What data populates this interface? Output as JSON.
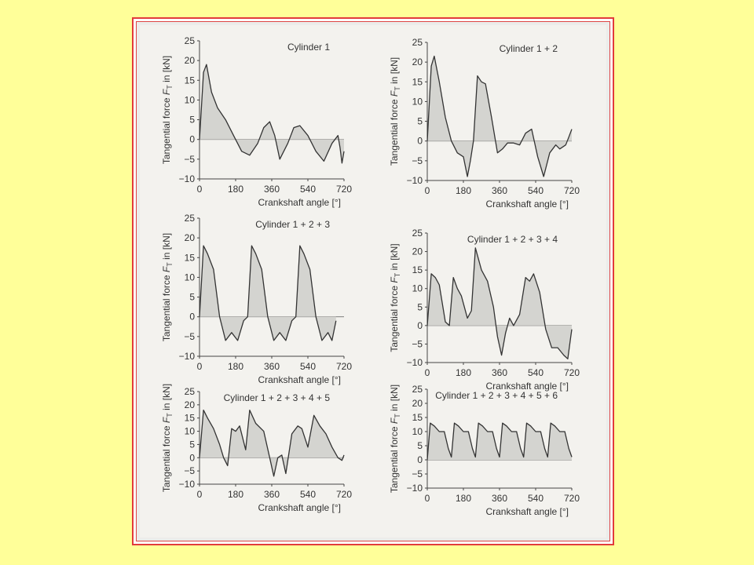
{
  "colors": {
    "background": "#ffff99",
    "frame": "#e23b3b",
    "curve": "#333333",
    "fill": "#d4d4d0"
  },
  "chart_data": [
    {
      "type": "area",
      "title": "Cylinder 1",
      "xlabel": "Crankshaft angle [°]",
      "ylabel": "Tangential force F_T in [kN]",
      "xticks": [
        "0",
        "180",
        "360",
        "540",
        "720"
      ],
      "yticks": [
        "25",
        "20",
        "15",
        "10",
        "5",
        "0",
        "−5",
        "−10"
      ],
      "xlim": [
        0,
        720
      ],
      "ylim": [
        -10,
        25
      ],
      "x": [
        0,
        20,
        35,
        60,
        90,
        130,
        170,
        210,
        250,
        290,
        320,
        350,
        375,
        400,
        440,
        470,
        500,
        540,
        580,
        620,
        660,
        690,
        700,
        710,
        720
      ],
      "y": [
        0,
        17,
        19,
        12,
        8,
        5,
        1,
        -3,
        -4,
        -1,
        3,
        4.5,
        1,
        -5,
        -1,
        3,
        3.5,
        1,
        -3,
        -5.5,
        -1,
        1,
        -2,
        -6,
        -3
      ]
    },
    {
      "type": "area",
      "title": "Cylinder 1 + 2",
      "xlabel": "Crankshaft angle [°]",
      "ylabel": "Tangential force F_T in [kN]",
      "xticks": [
        "0",
        "180",
        "360",
        "540",
        "720"
      ],
      "yticks": [
        "25",
        "20",
        "15",
        "10",
        "5",
        "0",
        "−5",
        "−10"
      ],
      "xlim": [
        0,
        720
      ],
      "ylim": [
        -10,
        25
      ],
      "x": [
        0,
        20,
        35,
        60,
        90,
        120,
        150,
        180,
        200,
        215,
        230,
        250,
        270,
        290,
        320,
        350,
        375,
        400,
        430,
        460,
        490,
        520,
        550,
        580,
        610,
        640,
        660,
        690,
        705,
        720
      ],
      "y": [
        0,
        19,
        21.5,
        15,
        6,
        0,
        -3,
        -4,
        -9,
        -5,
        0,
        16.5,
        15,
        14.5,
        6,
        -3,
        -2,
        -0.5,
        -0.5,
        -1,
        2,
        3,
        -4,
        -9,
        -3,
        -1,
        -2,
        -1,
        1,
        3
      ]
    },
    {
      "type": "area",
      "title": "Cylinder 1 + 2 + 3",
      "xlabel": "Crankshaft angle [°]",
      "ylabel": "Tangential force F_T in [kN]",
      "xticks": [
        "0",
        "180",
        "360",
        "540",
        "720"
      ],
      "yticks": [
        "25",
        "20",
        "15",
        "10",
        "5",
        "0",
        "−5",
        "−10"
      ],
      "xlim": [
        0,
        720
      ],
      "ylim": [
        -10,
        25
      ],
      "x": [
        0,
        20,
        40,
        70,
        100,
        130,
        160,
        190,
        220,
        240,
        260,
        280,
        310,
        340,
        370,
        400,
        430,
        460,
        480,
        500,
        520,
        550,
        580,
        610,
        640,
        660,
        680
      ],
      "y": [
        0,
        18,
        16,
        12,
        0,
        -6,
        -4,
        -6,
        -1,
        0,
        18,
        16,
        12,
        0,
        -6,
        -4,
        -6,
        -1,
        0,
        18,
        16,
        12,
        0,
        -6,
        -4,
        -6,
        -1
      ]
    },
    {
      "type": "area",
      "title": "Cylinder 1 + 2 + 3 + 4",
      "xlabel": "Crankshaft angle [°]",
      "ylabel": "Tangential force F_T in [kN]",
      "xticks": [
        "0",
        "180",
        "360",
        "540",
        "720"
      ],
      "yticks": [
        "25",
        "20",
        "15",
        "10",
        "5",
        "0",
        "−5",
        "−10"
      ],
      "xlim": [
        0,
        720
      ],
      "ylim": [
        -10,
        25
      ],
      "x": [
        0,
        20,
        40,
        60,
        90,
        110,
        130,
        150,
        170,
        200,
        220,
        240,
        270,
        300,
        330,
        350,
        370,
        390,
        410,
        430,
        460,
        490,
        510,
        530,
        560,
        590,
        620,
        650,
        680,
        700,
        715,
        720
      ],
      "y": [
        0,
        14,
        13,
        11,
        1,
        0,
        13,
        10,
        8,
        2,
        4,
        21,
        15,
        12,
        5,
        -3,
        -8,
        -2,
        2,
        0,
        3,
        13,
        12,
        14,
        9,
        -1,
        -6,
        -6,
        -8,
        -9,
        -3,
        -1
      ]
    },
    {
      "type": "area",
      "title": "Cylinder 1 + 2 + 3 + 4 + 5",
      "xlabel": "Crankshaft angle [°]",
      "ylabel": "Tangential force F_T in [kN]",
      "xticks": [
        "0",
        "180",
        "360",
        "540",
        "720"
      ],
      "yticks": [
        "25",
        "20",
        "15",
        "10",
        "5",
        "0",
        "−5",
        "−10"
      ],
      "xlim": [
        0,
        720
      ],
      "ylim": [
        -10,
        25
      ],
      "x": [
        0,
        20,
        40,
        70,
        100,
        120,
        140,
        160,
        180,
        200,
        230,
        250,
        280,
        320,
        350,
        370,
        390,
        410,
        430,
        460,
        490,
        510,
        540,
        570,
        600,
        630,
        660,
        690,
        710,
        720
      ],
      "y": [
        0,
        18,
        15,
        11,
        5,
        0,
        -3,
        11,
        10,
        12,
        3,
        18,
        13,
        10,
        0,
        -7,
        0,
        1,
        -6,
        9,
        12,
        11,
        4,
        16,
        12,
        9,
        4,
        0,
        -1,
        1
      ]
    },
    {
      "type": "area",
      "title": "Cylinder 1 + 2 + 3 + 4 + 5 + 6",
      "xlabel": "Crankshaft angle [°]",
      "ylabel": "Tangential force F_T in [kN]",
      "xticks": [
        "0",
        "180",
        "360",
        "540",
        "720"
      ],
      "yticks": [
        "25",
        "20",
        "15",
        "10",
        "5",
        "0",
        "−5",
        "−10"
      ],
      "xlim": [
        0,
        720
      ],
      "ylim": [
        -10,
        25
      ],
      "x": [
        0,
        15,
        35,
        60,
        85,
        105,
        120,
        135,
        155,
        180,
        205,
        225,
        240,
        255,
        275,
        300,
        325,
        345,
        360,
        375,
        395,
        420,
        445,
        465,
        480,
        495,
        515,
        540,
        565,
        585,
        600,
        615,
        635,
        660,
        685,
        705,
        720
      ],
      "y": [
        0,
        13,
        12,
        10,
        10,
        4,
        1,
        13,
        12,
        10,
        10,
        4,
        1,
        13,
        12,
        10,
        10,
        4,
        1,
        13,
        12,
        10,
        10,
        4,
        1,
        13,
        12,
        10,
        10,
        4,
        1,
        13,
        12,
        10,
        10,
        4,
        1
      ]
    }
  ]
}
